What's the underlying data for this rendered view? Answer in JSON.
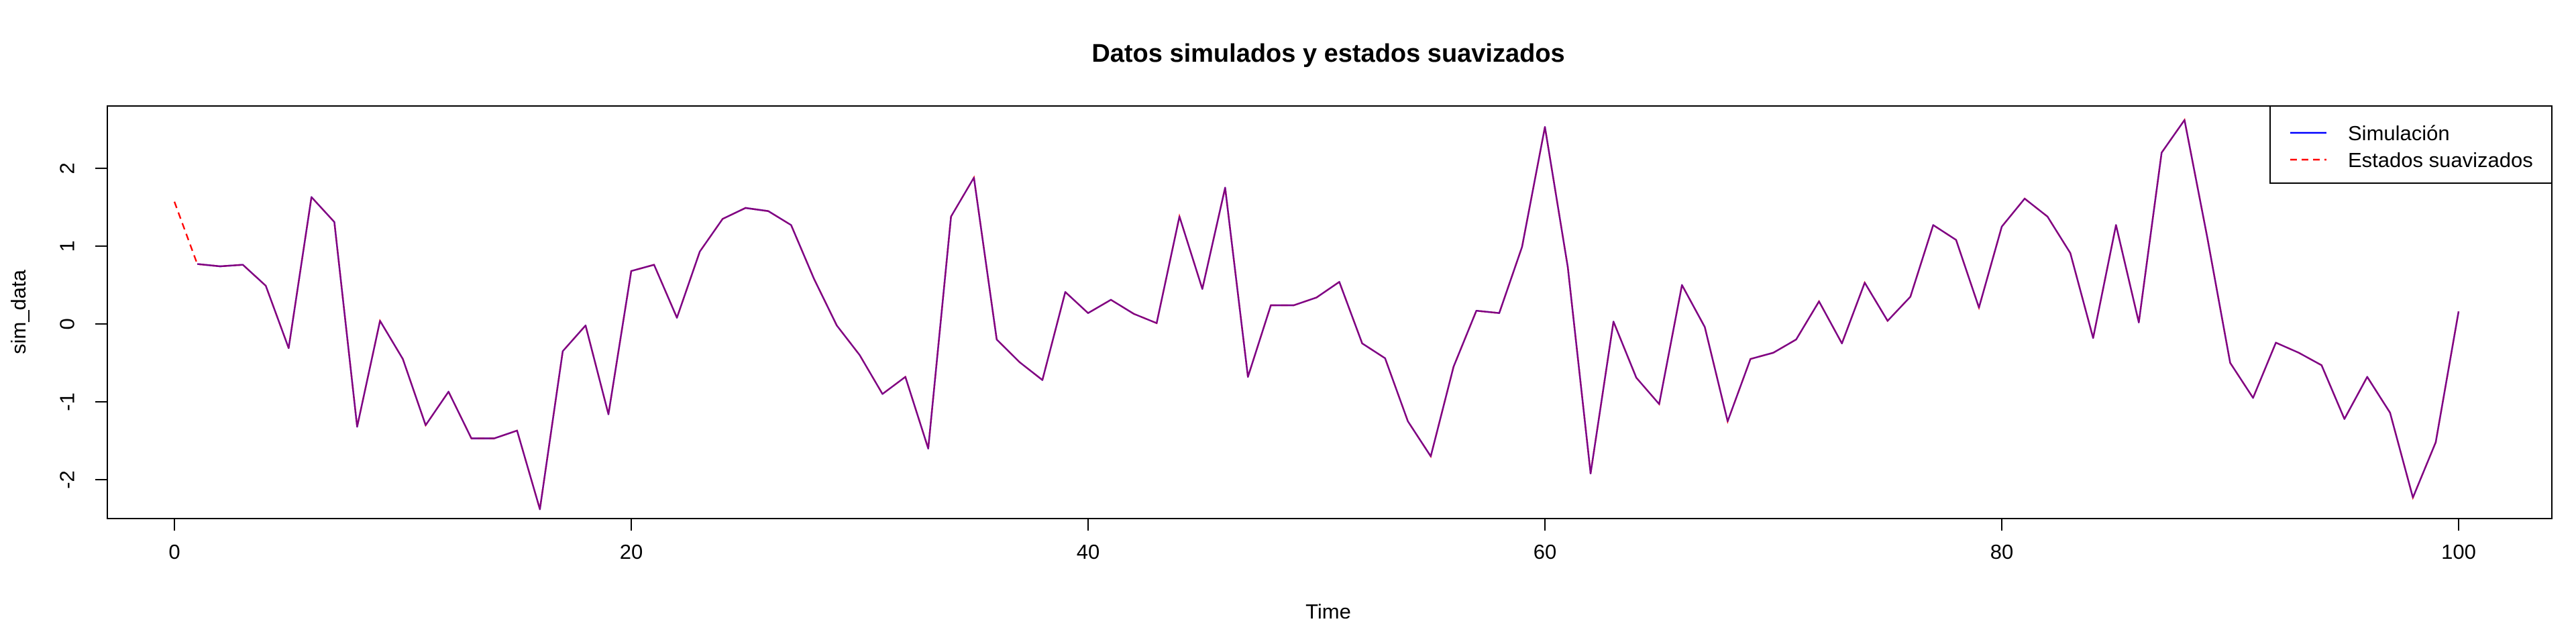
{
  "chart_data": {
    "type": "line",
    "title": "Datos simulados y estados suavizados",
    "xlabel": "Time",
    "ylabel": "sim_data",
    "xlim": [
      0,
      100
    ],
    "ylim": [
      -2.5,
      2.8
    ],
    "x_ticks": [
      0,
      20,
      40,
      60,
      80,
      100
    ],
    "x_tick_labels": [
      "0",
      "20",
      "40",
      "60",
      "80",
      "100"
    ],
    "y_ticks": [
      -2,
      -1,
      0,
      1,
      2
    ],
    "y_tick_labels": [
      "-2",
      "-1",
      "0",
      "1",
      "2"
    ],
    "grid": false,
    "legend_position": "top-right",
    "colors": {
      "simulation": "#0000ff",
      "smoothed": "#ff0000",
      "overlap": "#800080"
    },
    "series": [
      {
        "name": "Simulación",
        "line_style": "solid",
        "x_start": 1,
        "values": [
          0.77,
          0.74,
          0.76,
          0.49,
          -0.31,
          1.63,
          1.31,
          -1.32,
          0.04,
          -0.45,
          -1.3,
          -0.87,
          -1.47,
          -1.47,
          -1.37,
          -2.38,
          -0.35,
          -0.02,
          -1.16,
          0.68,
          0.76,
          0.08,
          0.93,
          1.35,
          1.49,
          1.45,
          1.27,
          0.58,
          -0.02,
          -0.4,
          -0.9,
          -0.68,
          -1.6,
          1.38,
          1.88,
          -0.2,
          -0.49,
          -0.72,
          0.41,
          0.14,
          0.31,
          0.13,
          0.01,
          1.38,
          0.45,
          1.75,
          -0.68,
          0.24,
          0.24,
          0.34,
          0.54,
          -0.25,
          -0.44,
          -1.25,
          -1.7,
          -0.55,
          0.17,
          0.14,
          0.99,
          2.53,
          0.73,
          -1.92,
          0.03,
          -0.69,
          -1.03,
          0.5,
          -0.04,
          -1.25,
          -0.45,
          -0.37,
          -0.2,
          0.29,
          -0.25,
          0.53,
          0.04,
          0.35,
          1.27,
          1.08,
          0.21,
          1.25,
          1.61,
          1.38,
          0.91,
          -0.18,
          1.27,
          0.02,
          2.2,
          2.62,
          1.11,
          -0.5,
          -0.95,
          -0.24,
          -0.37,
          -0.53,
          -1.22,
          -0.68,
          -1.14,
          -2.23,
          -1.52,
          0.16
        ]
      },
      {
        "name": "Estados suavizados",
        "line_style": "dashed",
        "x_start": 0,
        "values": [
          1.57,
          0.77,
          0.74,
          0.76,
          0.49,
          -0.31,
          1.63,
          1.31,
          -1.32,
          0.04,
          -0.45,
          -1.3,
          -0.87,
          -1.47,
          -1.47,
          -1.37,
          -2.38,
          -0.35,
          -0.02,
          -1.16,
          0.68,
          0.76,
          0.08,
          0.93,
          1.35,
          1.49,
          1.45,
          1.27,
          0.58,
          -0.02,
          -0.4,
          -0.9,
          -0.68,
          -1.6,
          1.38,
          1.88,
          -0.2,
          -0.49,
          -0.72,
          0.41,
          0.14,
          0.31,
          0.13,
          0.01,
          1.38,
          0.45,
          1.75,
          -0.68,
          0.24,
          0.24,
          0.34,
          0.54,
          -0.25,
          -0.44,
          -1.25,
          -1.7,
          -0.55,
          0.17,
          0.14,
          0.99,
          2.53,
          0.73,
          -1.92,
          0.03,
          -0.69,
          -1.03,
          0.5,
          -0.04,
          -1.25,
          -0.45,
          -0.37,
          -0.2,
          0.29,
          -0.25,
          0.53,
          0.04,
          0.35,
          1.27,
          1.08,
          0.21,
          1.25,
          1.61,
          1.38,
          0.91,
          -0.18,
          1.27,
          0.02,
          2.2,
          2.62,
          1.11,
          -0.5,
          -0.95,
          -0.24,
          -0.37,
          -0.53,
          -1.22,
          -0.68,
          -1.14,
          -2.23,
          -1.52,
          0.16
        ]
      }
    ]
  }
}
